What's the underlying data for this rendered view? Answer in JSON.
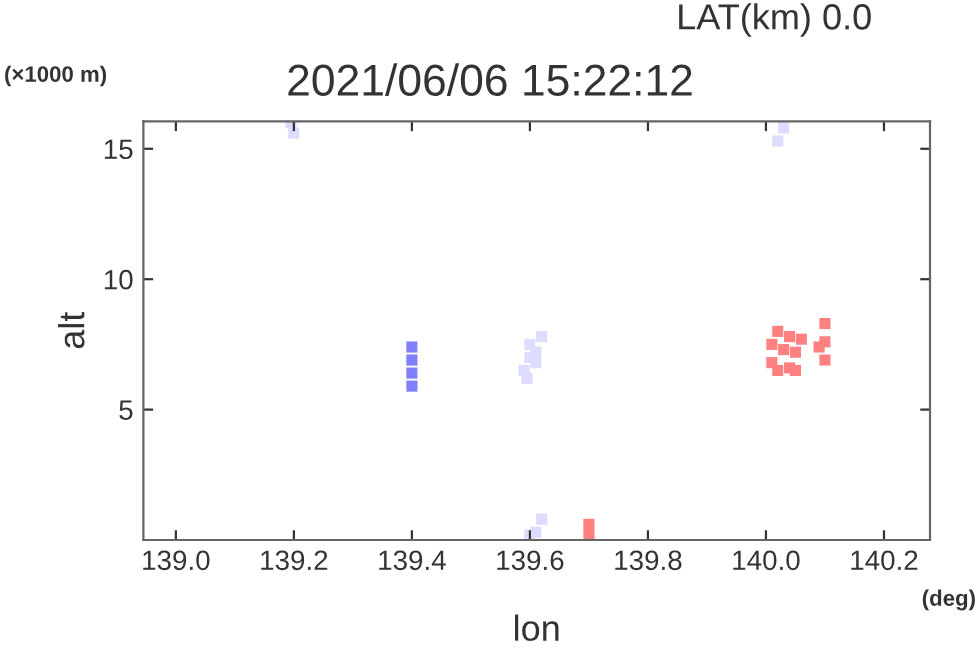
{
  "chart_data": {
    "type": "scatter",
    "title": "2021/06/06 15:22:12",
    "subtitle": "LAT(km) 0.0",
    "xlabel": "lon",
    "ylabel": "alt",
    "annotations": [
      "(×1000 m)",
      "(deg)"
    ],
    "marker": "square",
    "grid": false,
    "legend": false,
    "xlim": [
      138.945,
      140.278
    ],
    "ylim": [
      0,
      16.05
    ],
    "xticks": [
      {
        "value": 139.0,
        "label": "139.0"
      },
      {
        "value": 139.2,
        "label": "139.2"
      },
      {
        "value": 139.4,
        "label": "139.4"
      },
      {
        "value": 139.6,
        "label": "139.6"
      },
      {
        "value": 139.8,
        "label": "139.8"
      },
      {
        "value": 140.0,
        "label": "140.0"
      },
      {
        "value": 140.2,
        "label": "140.2"
      }
    ],
    "yticks": [
      5,
      10,
      15
    ],
    "series": [
      {
        "color": "#8080ff",
        "x": [
          139.4,
          139.4,
          139.4,
          139.4
        ],
        "values": [
          5.9,
          6.4,
          6.9,
          7.4
        ]
      },
      {
        "color": "#dcdcff",
        "x": [
          139.59,
          139.6,
          139.6,
          139.61,
          139.62,
          139.595,
          139.61,
          139.2,
          139.195,
          140.03,
          140.02,
          139.61,
          139.62,
          139.6
        ],
        "values": [
          6.5,
          7.0,
          7.5,
          6.8,
          7.8,
          6.2,
          7.2,
          15.6,
          16.0,
          15.8,
          15.3,
          0.3,
          0.8,
          0.2
        ]
      },
      {
        "color": "#ff8080",
        "x": [
          140.01,
          140.01,
          140.02,
          140.02,
          140.03,
          140.04,
          140.04,
          140.05,
          140.05,
          140.1,
          140.1,
          140.1,
          140.09,
          140.06,
          139.7,
          139.7
        ],
        "values": [
          6.8,
          7.5,
          6.5,
          8.0,
          7.3,
          6.6,
          7.8,
          7.2,
          6.5,
          6.9,
          7.6,
          8.3,
          7.4,
          7.7,
          0.2,
          0.6
        ]
      }
    ]
  }
}
